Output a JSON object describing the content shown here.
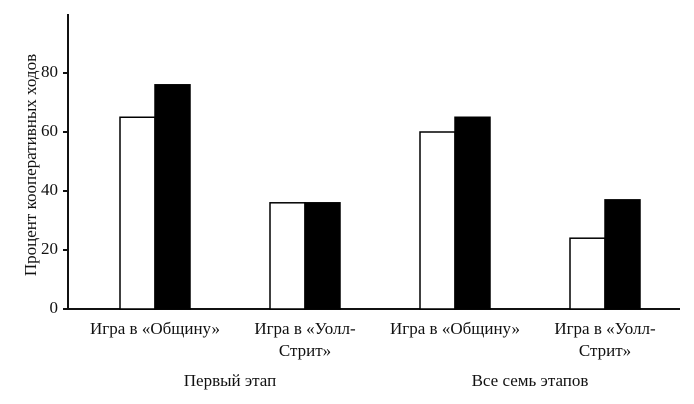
{
  "chart_data": {
    "type": "bar",
    "y_label": "Процент кооперативных ходов",
    "categories": [
      [
        "Игра в «Общину»"
      ],
      [
        "Игра в «Уолл-",
        "Стрит»"
      ],
      [
        "Игра в «Общину»"
      ],
      [
        "Игра в «Уолл-",
        "Стрит»"
      ]
    ],
    "group_labels": [
      "Первый этап",
      "Все семь этапов"
    ],
    "series": [
      {
        "color": "#ffffff",
        "values": [
          65,
          36,
          60,
          24
        ]
      },
      {
        "color": "#000000",
        "values": [
          76,
          36,
          65,
          37
        ]
      }
    ],
    "ylim": [
      0,
      100
    ],
    "yticks": [
      0,
      20,
      40,
      60,
      80
    ],
    "grid": false
  }
}
